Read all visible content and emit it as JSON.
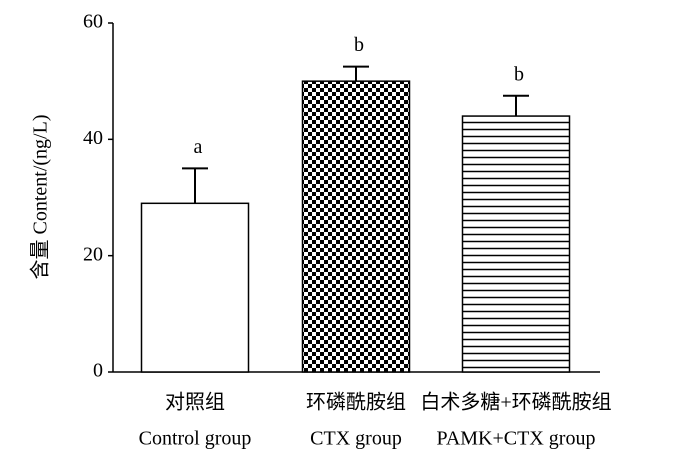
{
  "chart_data": {
    "type": "bar",
    "y_label": "含量  Content/(ng/L)",
    "categories": [
      "对照组",
      "环磷酰胺组",
      "白术多糖+环磷酰胺组"
    ],
    "categories_en": [
      "Control group",
      "CTX group",
      "PAMK+CTX group"
    ],
    "values": [
      29,
      50,
      44
    ],
    "errors": [
      6,
      2.5,
      3.5
    ],
    "significance_letters": [
      "a",
      "b",
      "b"
    ],
    "patterns": [
      "none",
      "checker",
      "horizontal-lines"
    ],
    "color": "#000000",
    "ylim": [
      0,
      60
    ],
    "yticks": [
      0,
      20,
      40,
      60
    ],
    "grid": false
  }
}
